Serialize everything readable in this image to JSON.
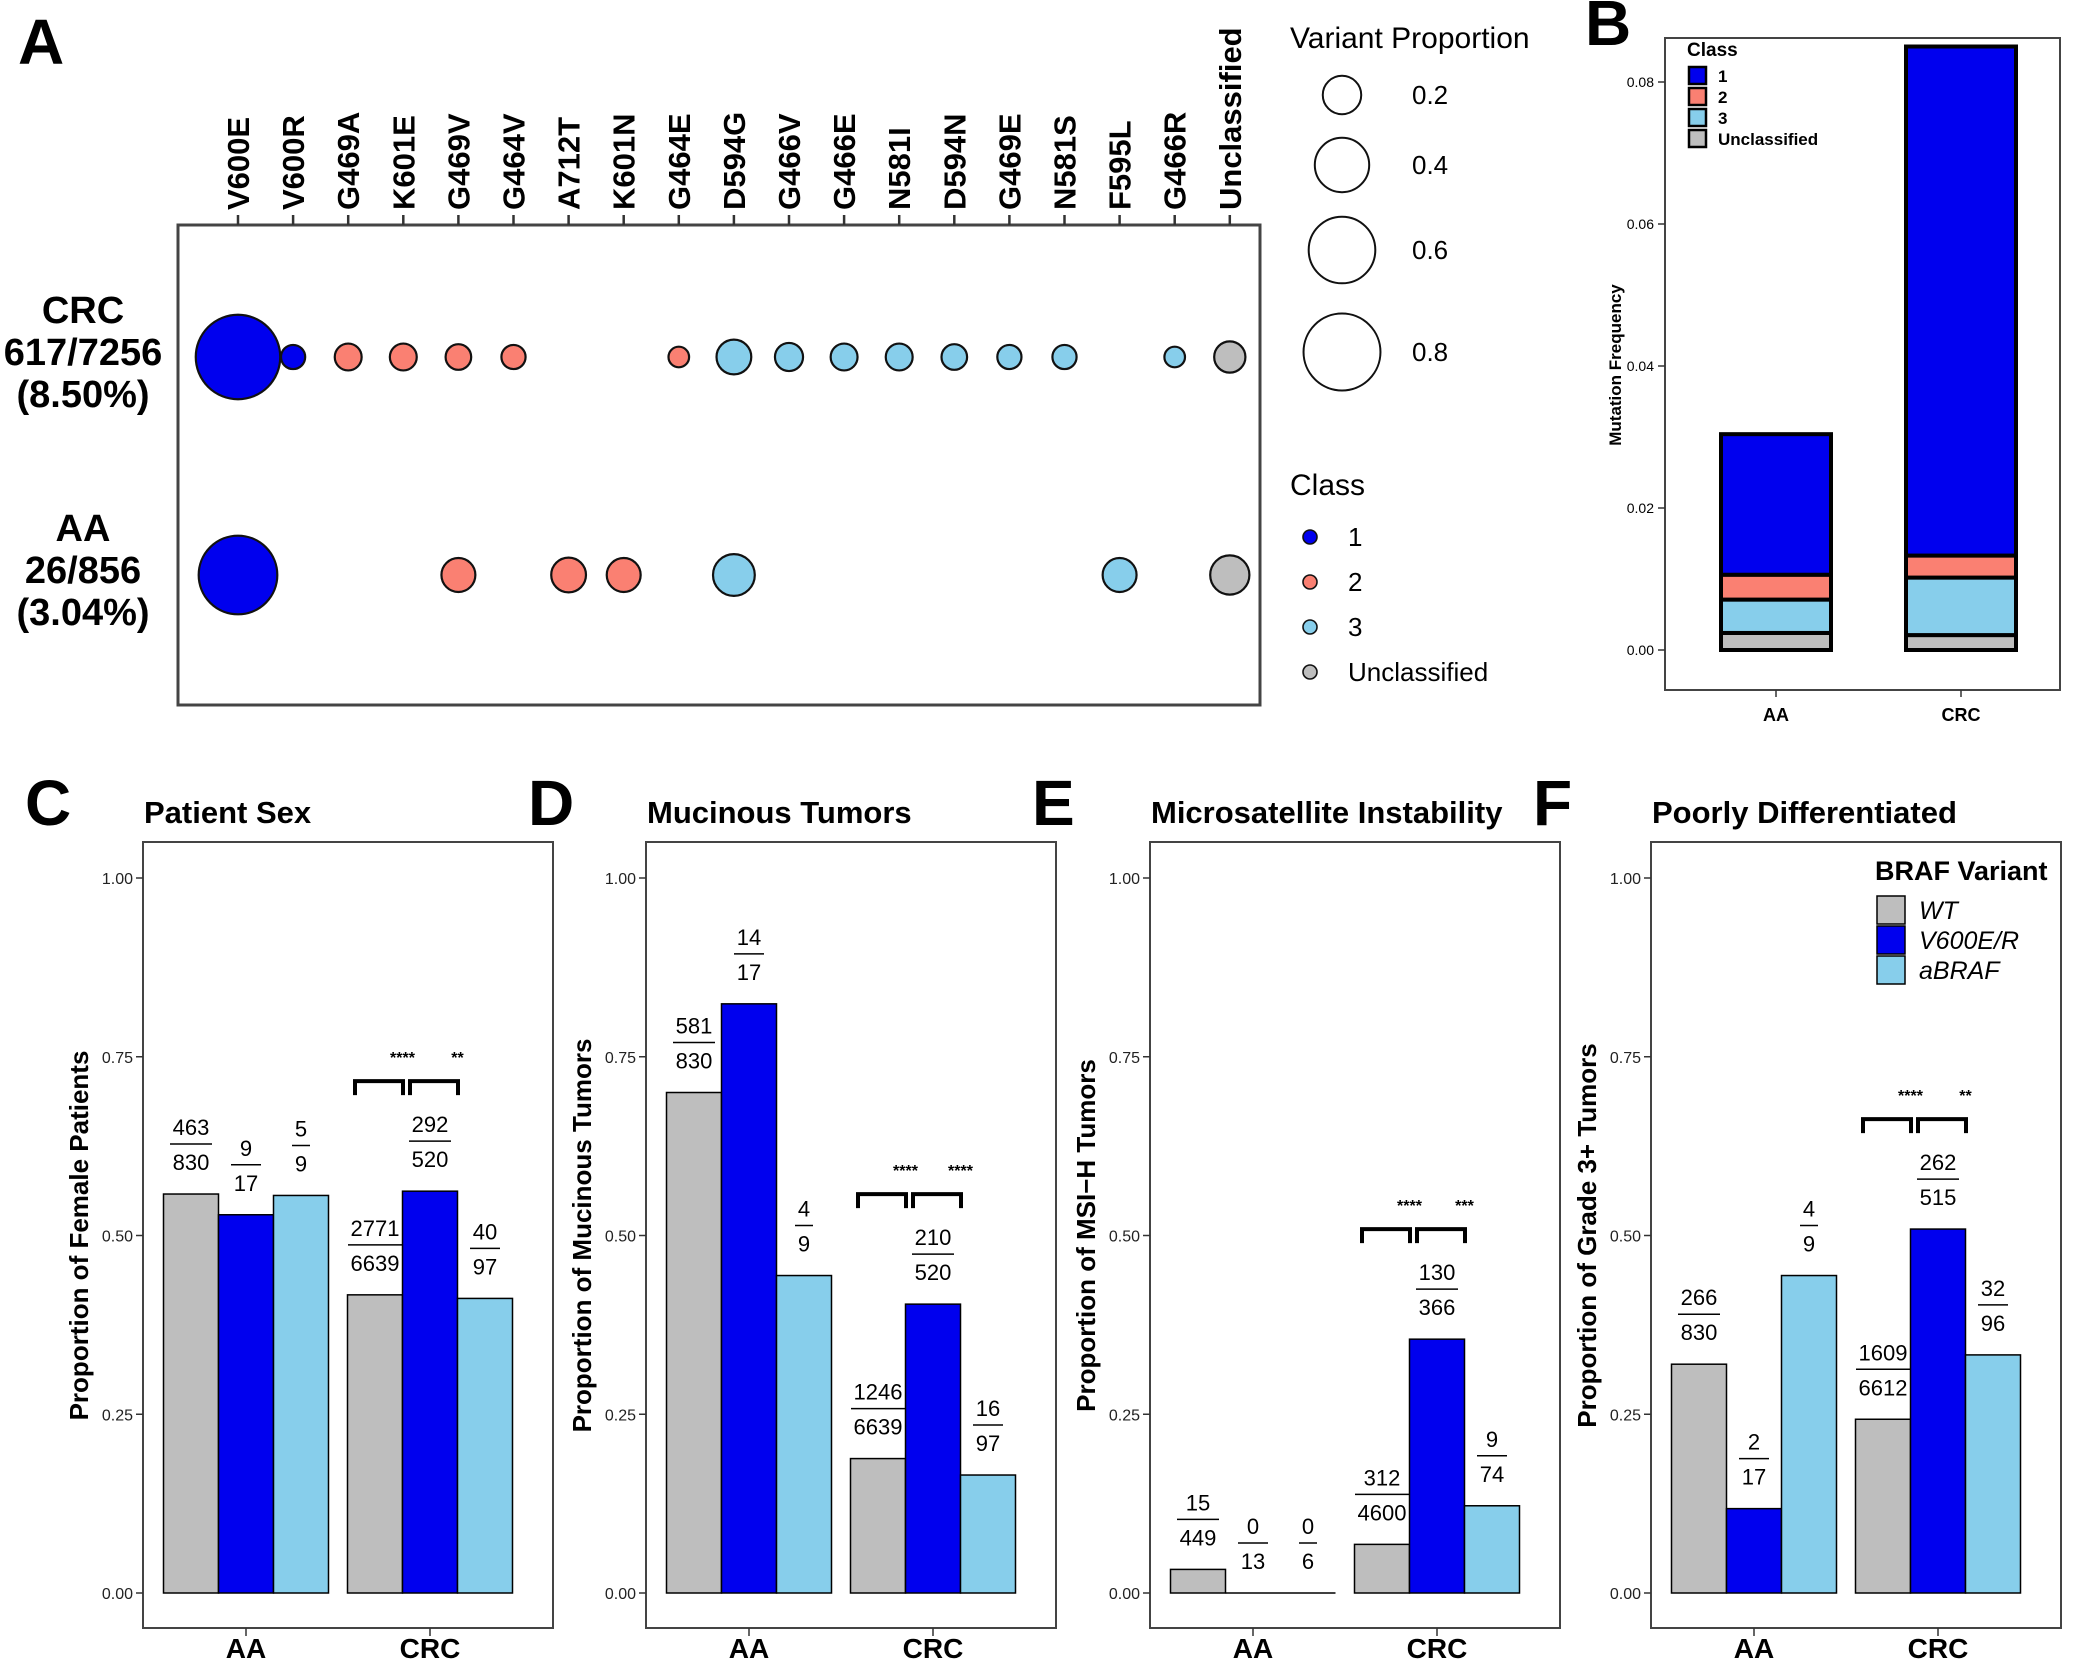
{
  "colors": {
    "wt": "#bebebe",
    "v600": "#0000ee",
    "abraf": "#87ceeb",
    "class1": "#0000ee",
    "class2": "#fa8072",
    "class3": "#87ceeb",
    "unclassified": "#bebebe"
  },
  "chart_data": [
    {
      "panel": "A",
      "type": "scatter",
      "title": "",
      "variants": [
        "V600E",
        "V600R",
        "G469A",
        "K601E",
        "G469V",
        "G464V",
        "A712T",
        "K601N",
        "G464E",
        "D594G",
        "G466V",
        "G466E",
        "N581I",
        "D594N",
        "G469E",
        "N581S",
        "F595L",
        "G466R",
        "Unclassified"
      ],
      "variant_class": [
        "1",
        "1",
        "2",
        "2",
        "2",
        "2",
        "2",
        "2",
        "2",
        "3",
        "3",
        "3",
        "3",
        "3",
        "3",
        "3",
        "3",
        "3",
        "Unclassified"
      ],
      "rows": [
        {
          "name": "CRC",
          "line1": "CRC",
          "line2": "617/7256",
          "line3": "(8.50%)",
          "proportions": [
            0.71,
            0.02,
            0.03,
            0.03,
            0.025,
            0.02,
            null,
            null,
            0.01,
            0.07,
            0.035,
            0.03,
            0.03,
            0.025,
            0.02,
            0.02,
            null,
            0.01,
            0.05
          ]
        },
        {
          "name": "AA",
          "line1": "AA",
          "line2": "26/856",
          "line3": "(3.04%)",
          "proportions": [
            0.6,
            null,
            null,
            null,
            0.065,
            null,
            0.07,
            0.065,
            null,
            0.12,
            null,
            null,
            null,
            null,
            null,
            null,
            0.065,
            null,
            0.1
          ]
        }
      ],
      "size_legend": {
        "title": "Variant Proportion",
        "values": [
          0.2,
          0.4,
          0.6,
          0.8
        ],
        "labels": [
          "0.2",
          "0.4",
          "0.6",
          "0.8"
        ]
      },
      "class_legend": {
        "title": "Class",
        "labels": [
          "1",
          "2",
          "3",
          "Unclassified"
        ]
      }
    },
    {
      "panel": "B",
      "type": "bar",
      "stacked": true,
      "categories": [
        "AA",
        "CRC"
      ],
      "ylabel": "Mutation Frequency",
      "ylim": [
        0,
        0.09
      ],
      "yticks": [
        "0.00",
        "0.02",
        "0.04",
        "0.06",
        "0.08"
      ],
      "legend_title": "Class",
      "series": [
        {
          "name": "Unclassified",
          "values": [
            0.0024,
            0.0021
          ]
        },
        {
          "name": "3",
          "values": [
            0.0047,
            0.0081
          ]
        },
        {
          "name": "2",
          "values": [
            0.0035,
            0.0031
          ]
        },
        {
          "name": "1",
          "values": [
            0.0198,
            0.0717
          ]
        }
      ],
      "legend_order": [
        "1",
        "2",
        "3",
        "Unclassified"
      ]
    },
    {
      "panel": "C",
      "type": "bar",
      "title": "Patient Sex",
      "ylabel": "Proportion of Female Patients",
      "categories": [
        "AA",
        "CRC"
      ],
      "ylim": [
        0,
        1
      ],
      "yticks": [
        "0.00",
        "0.25",
        "0.50",
        "0.75",
        "1.00"
      ],
      "series": [
        {
          "name": "WT",
          "values": [
            0.558,
            0.417
          ],
          "num": [
            "463",
            "2771"
          ],
          "den": [
            "830",
            "6639"
          ]
        },
        {
          "name": "V600E/R",
          "values": [
            0.529,
            0.562
          ],
          "num": [
            "9",
            "292"
          ],
          "den": [
            "17",
            "520"
          ]
        },
        {
          "name": "aBRAF",
          "values": [
            0.556,
            0.412
          ],
          "num": [
            "5",
            "40"
          ],
          "den": [
            "9",
            "97"
          ]
        }
      ],
      "significance": [
        {
          "group": "CRC",
          "pair": "WT-V600E/R",
          "label": "****"
        },
        {
          "group": "CRC",
          "pair": "V600E/R-aBRAF",
          "label": "**"
        }
      ]
    },
    {
      "panel": "D",
      "type": "bar",
      "title": "Mucinous Tumors",
      "ylabel": "Proportion of Mucinous Tumors",
      "categories": [
        "AA",
        "CRC"
      ],
      "ylim": [
        0,
        1
      ],
      "yticks": [
        "0.00",
        "0.25",
        "0.50",
        "0.75",
        "1.00"
      ],
      "series": [
        {
          "name": "WT",
          "values": [
            0.7,
            0.188
          ],
          "num": [
            "581",
            "1246"
          ],
          "den": [
            "830",
            "6639"
          ]
        },
        {
          "name": "V600E/R",
          "values": [
            0.824,
            0.404
          ],
          "num": [
            "14",
            "210"
          ],
          "den": [
            "17",
            "520"
          ]
        },
        {
          "name": "aBRAF",
          "values": [
            0.444,
            0.165
          ],
          "num": [
            "4",
            "16"
          ],
          "den": [
            "9",
            "97"
          ]
        }
      ],
      "significance": [
        {
          "group": "CRC",
          "pair": "WT-V600E/R",
          "label": "****"
        },
        {
          "group": "CRC",
          "pair": "V600E/R-aBRAF",
          "label": "****"
        }
      ]
    },
    {
      "panel": "E",
      "type": "bar",
      "title": "Microsatellite Instability",
      "ylabel": "Proportion of MSI−H Tumors",
      "categories": [
        "AA",
        "CRC"
      ],
      "ylim": [
        0,
        1
      ],
      "yticks": [
        "0.00",
        "0.25",
        "0.50",
        "0.75",
        "1.00"
      ],
      "series": [
        {
          "name": "WT",
          "values": [
            0.033,
            0.068
          ],
          "num": [
            "15",
            "312"
          ],
          "den": [
            "449",
            "4600"
          ]
        },
        {
          "name": "V600E/R",
          "values": [
            0.0,
            0.355
          ],
          "num": [
            "0",
            "130"
          ],
          "den": [
            "13",
            "366"
          ]
        },
        {
          "name": "aBRAF",
          "values": [
            0.0,
            0.122
          ],
          "num": [
            "0",
            "9"
          ],
          "den": [
            "6",
            "74"
          ]
        }
      ],
      "significance": [
        {
          "group": "CRC",
          "pair": "WT-V600E/R",
          "label": "****"
        },
        {
          "group": "CRC",
          "pair": "V600E/R-aBRAF",
          "label": "***"
        }
      ]
    },
    {
      "panel": "F",
      "type": "bar",
      "title": "Poorly Differentiated",
      "ylabel": "Proportion of Grade 3+ Tumors",
      "categories": [
        "AA",
        "CRC"
      ],
      "ylim": [
        0,
        1
      ],
      "yticks": [
        "0.00",
        "0.25",
        "0.50",
        "0.75",
        "1.00"
      ],
      "series": [
        {
          "name": "WT",
          "values": [
            0.32,
            0.243
          ],
          "num": [
            "266",
            "1609"
          ],
          "den": [
            "830",
            "6612"
          ]
        },
        {
          "name": "V600E/R",
          "values": [
            0.118,
            0.509
          ],
          "num": [
            "2",
            "262"
          ],
          "den": [
            "17",
            "515"
          ]
        },
        {
          "name": "aBRAF",
          "values": [
            0.444,
            0.333
          ],
          "num": [
            "4",
            "32"
          ],
          "den": [
            "9",
            "96"
          ]
        }
      ],
      "significance": [
        {
          "group": "CRC",
          "pair": "WT-V600E/R",
          "label": "****"
        },
        {
          "group": "CRC",
          "pair": "V600E/R-aBRAF",
          "label": "**"
        }
      ],
      "legend": {
        "title": "BRAF Variant",
        "labels": [
          "WT",
          "V600E/R",
          "aBRAF"
        ]
      }
    }
  ]
}
